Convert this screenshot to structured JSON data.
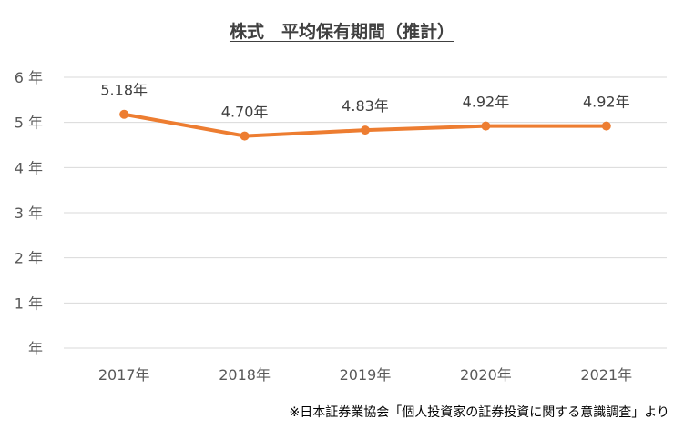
{
  "chart_data": {
    "type": "line",
    "title": "株式　平均保有期間（推計）",
    "categories": [
      "2017年",
      "2018年",
      "2019年",
      "2020年",
      "2021年"
    ],
    "series": [
      {
        "values": [
          5.18,
          4.7,
          4.83,
          4.92,
          4.92
        ],
        "labels": [
          "5.18年",
          "4.70年",
          "4.83年",
          "4.92年",
          "4.92年"
        ],
        "color": "#ED7D31"
      }
    ],
    "ylim": [
      0,
      6
    ],
    "y_ticks": [
      0,
      1,
      2,
      3,
      4,
      5,
      6
    ],
    "y_tick_labels": [
      "年",
      "1 年",
      "2 年",
      "3 年",
      "4 年",
      "5 年",
      "6 年"
    ],
    "grid": true,
    "gridline_color": "#D9D9D9"
  },
  "source_note": "※日本証券業協会「個人投資家の証券投資に関する意識調査」より"
}
